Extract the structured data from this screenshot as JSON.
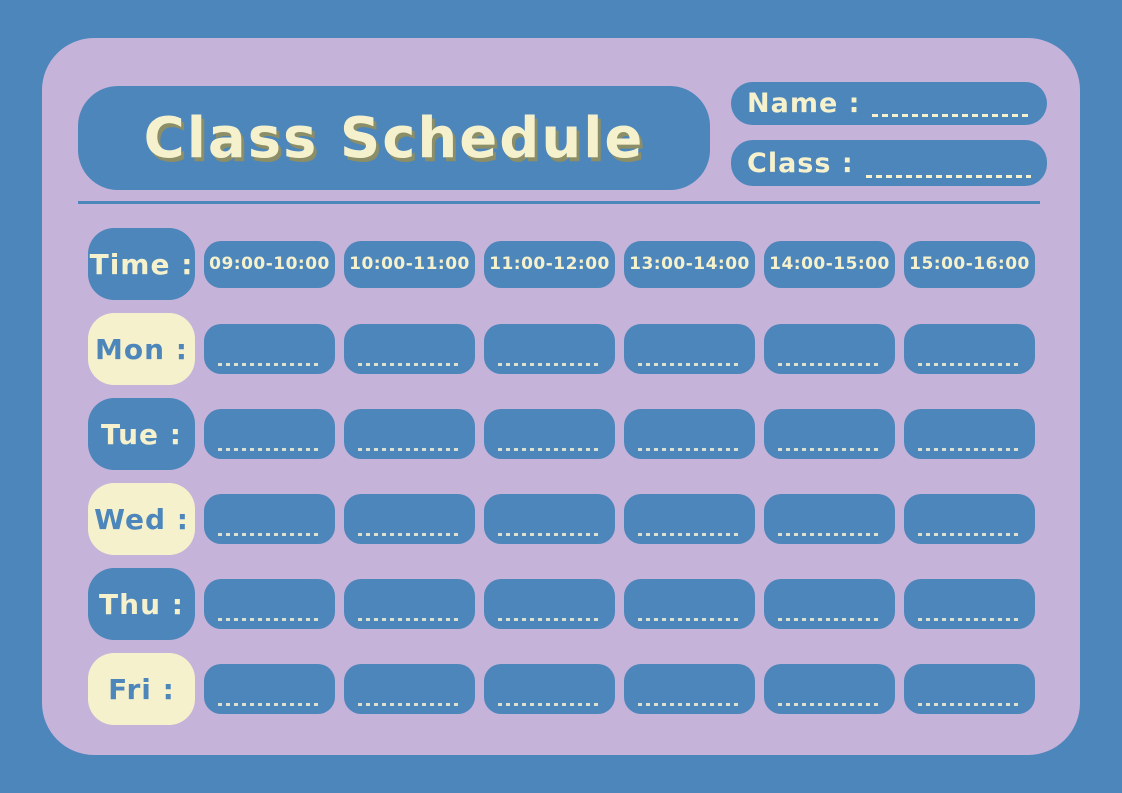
{
  "title": "Class Schedule",
  "fields": [
    {
      "label": "Name :"
    },
    {
      "label": "Class :"
    }
  ],
  "grid": {
    "time_label": "Time :",
    "time_slots": [
      "09:00-10:00",
      "10:00-11:00",
      "11:00-12:00",
      "13:00-14:00",
      "14:00-15:00",
      "15:00-16:00"
    ],
    "days": [
      {
        "label": "Mon :",
        "style": "cream"
      },
      {
        "label": "Tue :",
        "style": "blue"
      },
      {
        "label": "Wed :",
        "style": "cream"
      },
      {
        "label": "Thu :",
        "style": "blue"
      },
      {
        "label": "Fri :",
        "style": "cream"
      }
    ]
  },
  "colors": {
    "background_blue": "#4C86BB",
    "card_lavender": "#C5B3D9",
    "cream": "#F6F1CD",
    "title_shadow_olive": "#8B8E66"
  }
}
